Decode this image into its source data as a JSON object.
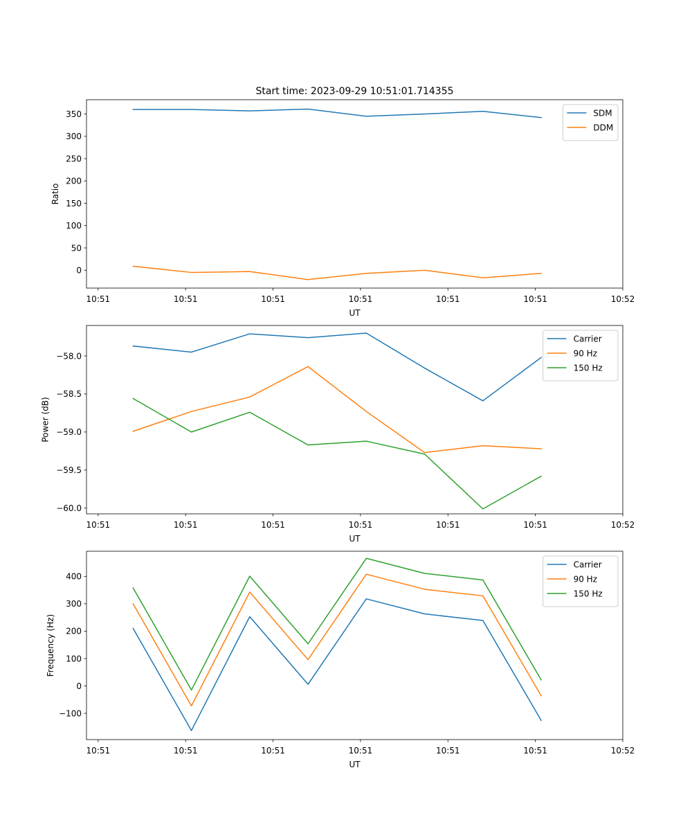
{
  "chart_data": [
    {
      "type": "line",
      "title": "Start time: 2023-09-29 10:51:01.714355",
      "xlabel": "UT",
      "ylabel": "Ratio",
      "x": [
        1,
        2,
        3,
        4,
        5,
        6,
        7,
        8
      ],
      "xlim": [
        0.2,
        9.4
      ],
      "xticks": [
        0.4,
        1.9,
        3.4,
        4.9,
        6.4,
        7.9,
        9.4
      ],
      "xtick_labels": [
        "10:51",
        "10:51",
        "10:51",
        "10:51",
        "10:51",
        "10:51",
        "10:52"
      ],
      "ylim": [
        -40,
        382
      ],
      "yticks": [
        0,
        50,
        100,
        150,
        200,
        250,
        300,
        350
      ],
      "ytick_labels": [
        "0",
        "50",
        "100",
        "150",
        "200",
        "250",
        "300",
        "350"
      ],
      "legend": "top-right",
      "series": [
        {
          "name": "SDM",
          "color": "#1f77b4",
          "values": [
            360,
            360,
            357,
            361,
            345,
            350,
            356,
            342
          ]
        },
        {
          "name": "DDM",
          "color": "#ff7f0e",
          "values": [
            9,
            -5,
            -3,
            -21,
            -7,
            0,
            -17,
            -7
          ]
        }
      ]
    },
    {
      "type": "line",
      "title": "",
      "xlabel": "UT",
      "ylabel": "Power (dB)",
      "x": [
        1,
        2,
        3,
        4,
        5,
        6,
        7,
        8
      ],
      "xlim": [
        0.2,
        9.4
      ],
      "xticks": [
        0.4,
        1.9,
        3.4,
        4.9,
        6.4,
        7.9,
        9.4
      ],
      "xtick_labels": [
        "10:51",
        "10:51",
        "10:51",
        "10:51",
        "10:51",
        "10:51",
        "10:52"
      ],
      "ylim": [
        -60.075,
        -57.6
      ],
      "yticks": [
        -58.0,
        -58.5,
        -59.0,
        -59.5,
        -60.0
      ],
      "ytick_labels": [
        "−58.0",
        "−58.5",
        "−59.0",
        "−59.5",
        "−60.0"
      ],
      "legend": "top-right",
      "series": [
        {
          "name": "Carrier",
          "color": "#1f77b4",
          "values": [
            -57.87,
            -57.95,
            -57.71,
            -57.76,
            -57.7,
            -58.16,
            -58.59,
            -58.02
          ]
        },
        {
          "name": "90 Hz",
          "color": "#ff7f0e",
          "values": [
            -58.99,
            -58.73,
            -58.54,
            -58.14,
            -58.73,
            -59.27,
            -59.18,
            -59.22
          ]
        },
        {
          "name": "150 Hz",
          "color": "#2ca02c",
          "values": [
            -58.56,
            -59.0,
            -58.74,
            -59.17,
            -59.12,
            -59.29,
            -60.01,
            -59.58
          ]
        }
      ]
    },
    {
      "type": "line",
      "title": "",
      "xlabel": "UT",
      "ylabel": "Frequency (Hz)",
      "x": [
        1,
        2,
        3,
        4,
        5,
        6,
        7,
        8
      ],
      "xlim": [
        0.2,
        9.4
      ],
      "xticks": [
        0.4,
        1.9,
        3.4,
        4.9,
        6.4,
        7.9,
        9.4
      ],
      "xtick_labels": [
        "10:51",
        "10:51",
        "10:51",
        "10:51",
        "10:51",
        "10:51",
        "10:52"
      ],
      "ylim": [
        -196,
        492
      ],
      "yticks": [
        -100,
        0,
        100,
        200,
        300,
        400
      ],
      "ytick_labels": [
        "−100",
        "0",
        "100",
        "200",
        "300",
        "400"
      ],
      "legend": "top-right",
      "series": [
        {
          "name": "Carrier",
          "color": "#1f77b4",
          "values": [
            210,
            -163,
            253,
            6,
            318,
            263,
            239,
            -126
          ]
        },
        {
          "name": "90 Hz",
          "color": "#ff7f0e",
          "values": [
            300,
            -73,
            343,
            96,
            408,
            353,
            329,
            -36
          ]
        },
        {
          "name": "150 Hz",
          "color": "#2ca02c",
          "values": [
            358,
            -15,
            401,
            154,
            466,
            411,
            387,
            22
          ]
        }
      ]
    }
  ]
}
